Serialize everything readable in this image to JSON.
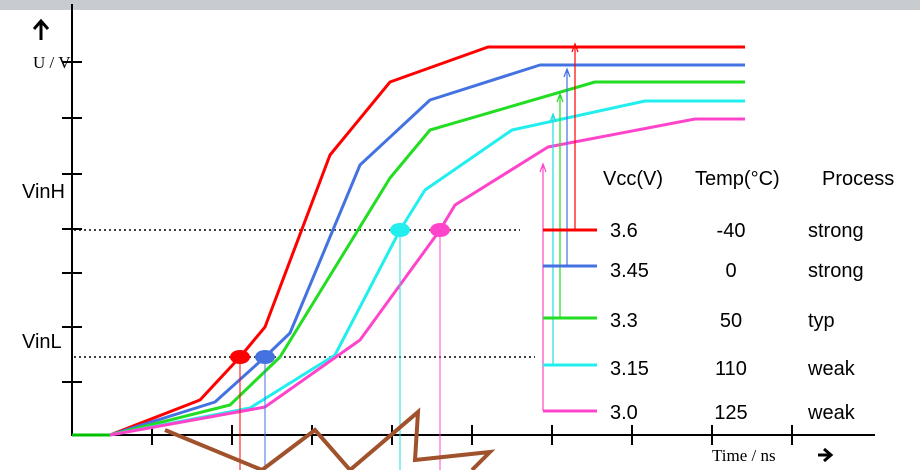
{
  "axes": {
    "y_label": "U / V",
    "x_label": "Time / ns",
    "levels": [
      "VinH",
      "VinL"
    ]
  },
  "legend": {
    "headers": [
      "Vcc(V)",
      "Temp(°C)",
      "Process"
    ],
    "rows": [
      [
        "3.6",
        "-40",
        "strong"
      ],
      [
        "3.45",
        "0",
        "strong"
      ],
      [
        "3.3",
        "50",
        "typ"
      ],
      [
        "3.15",
        "110",
        "weak"
      ],
      [
        "3.0",
        "125",
        "weak"
      ]
    ]
  }
}
